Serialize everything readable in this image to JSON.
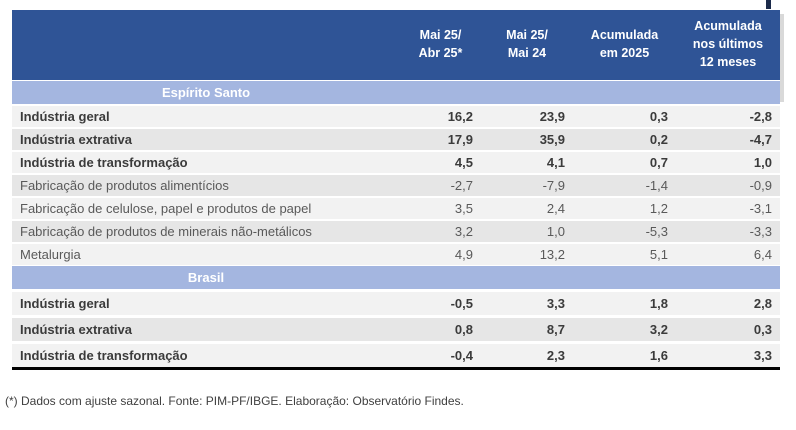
{
  "table": {
    "columns": [
      "Mai 25/\nAbr 25*",
      "Mai 25/\nMai 24",
      "Acumulada\nem 2025",
      "Acumulada\nnos últimos\n12 meses"
    ],
    "sections": [
      {
        "title": "Espírito Santo",
        "rows": [
          {
            "label": "Indústria geral",
            "values": [
              "16,2",
              "23,9",
              "0,3",
              "-2,8"
            ]
          },
          {
            "label": "Indústria extrativa",
            "values": [
              "17,9",
              "35,9",
              "0,2",
              "-4,7"
            ]
          },
          {
            "label": "Indústria de transformação",
            "values": [
              "4,5",
              "4,1",
              "0,7",
              "1,0"
            ]
          },
          {
            "label": "Fabricação de produtos alimentícios",
            "values": [
              "-2,7",
              "-7,9",
              "-1,4",
              "-0,9"
            ]
          },
          {
            "label": "Fabricação de celulose, papel e produtos de papel",
            "values": [
              "3,5",
              "2,4",
              "1,2",
              "-3,1"
            ]
          },
          {
            "label": "Fabricação de produtos de minerais não-metálicos",
            "values": [
              "3,2",
              "1,0",
              "-5,3",
              "-3,3"
            ]
          },
          {
            "label": "Metalurgia",
            "values": [
              "4,9",
              "13,2",
              "5,1",
              "6,4"
            ]
          }
        ]
      },
      {
        "title": "Brasil",
        "rows": [
          {
            "label": "Indústria geral",
            "values": [
              "-0,5",
              "3,3",
              "1,8",
              "2,8"
            ]
          },
          {
            "label": "Indústria extrativa",
            "values": [
              "0,8",
              "8,7",
              "3,2",
              "0,3"
            ]
          },
          {
            "label": "Indústria de transformação",
            "values": [
              "-0,4",
              "2,3",
              "1,6",
              "3,3"
            ]
          }
        ]
      }
    ]
  },
  "footnote": "(*) Dados com ajuste sazonal. Fonte: PIM-PF/IBGE. Elaboração: Observatório Findes.",
  "colors": {
    "header_bg": "#2F5496",
    "section_band_bg": "#A4B6E0",
    "row_odd": "#F2F2F2",
    "row_even": "#E6E6E6",
    "bold_text": "#3B3B3B",
    "light_text": "#595959",
    "bottom_border": "#000000"
  },
  "chart_data": {
    "type": "table",
    "title": "",
    "columns": [
      "Mai 25/Abr 25*",
      "Mai 25/Mai 24",
      "Acumulada em 2025",
      "Acumulada nos últimos 12 meses"
    ],
    "sections": [
      {
        "name": "Espírito Santo",
        "rows": [
          {
            "label": "Indústria geral",
            "values": [
              16.2,
              23.9,
              0.3,
              -2.8
            ]
          },
          {
            "label": "Indústria extrativa",
            "values": [
              17.9,
              35.9,
              0.2,
              -4.7
            ]
          },
          {
            "label": "Indústria de transformação",
            "values": [
              4.5,
              4.1,
              0.7,
              1.0
            ]
          },
          {
            "label": "Fabricação de produtos alimentícios",
            "values": [
              -2.7,
              -7.9,
              -1.4,
              -0.9
            ]
          },
          {
            "label": "Fabricação de celulose, papel e produtos de papel",
            "values": [
              3.5,
              2.4,
              1.2,
              -3.1
            ]
          },
          {
            "label": "Fabricação de produtos de minerais não-metálicos",
            "values": [
              3.2,
              1.0,
              -5.3,
              -3.3
            ]
          },
          {
            "label": "Metalurgia",
            "values": [
              4.9,
              13.2,
              5.1,
              6.4
            ]
          }
        ]
      },
      {
        "name": "Brasil",
        "rows": [
          {
            "label": "Indústria geral",
            "values": [
              -0.5,
              3.3,
              1.8,
              2.8
            ]
          },
          {
            "label": "Indústria extrativa",
            "values": [
              0.8,
              8.7,
              3.2,
              0.3
            ]
          },
          {
            "label": "Indústria de transformação",
            "values": [
              -0.4,
              2.3,
              1.6,
              3.3
            ]
          }
        ]
      }
    ],
    "note": "(*) Dados com ajuste sazonal. Fonte: PIM-PF/IBGE. Elaboração: Observatório Findes."
  }
}
